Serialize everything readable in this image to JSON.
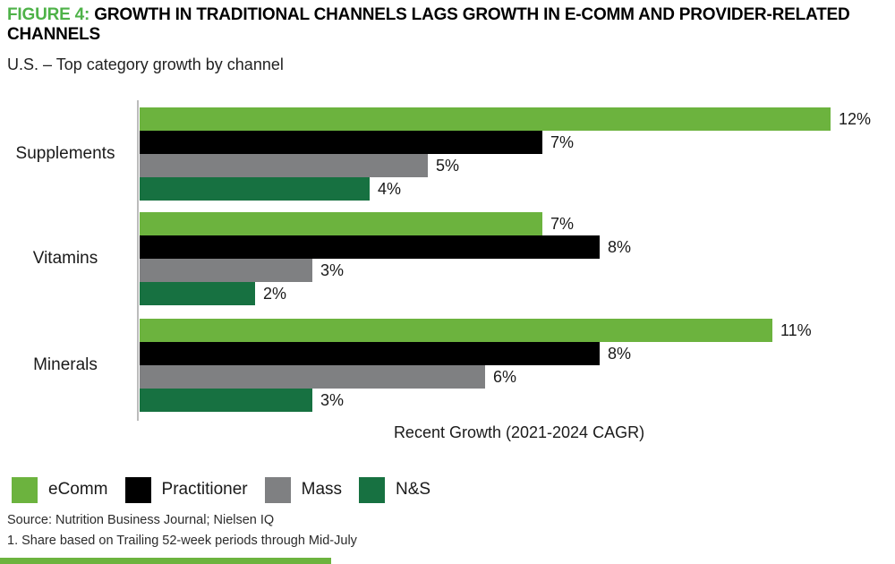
{
  "header": {
    "figure_label": "FIGURE 4:",
    "title": "GROWTH IN TRADITIONAL CHANNELS LAGS GROWTH IN E-COMM AND PROVIDER-RELATED CHANNELS",
    "subtitle": "U.S. – Top category growth by channel"
  },
  "chart_data": {
    "type": "bar",
    "orientation": "horizontal",
    "title": "U.S. – Top category growth by channel",
    "xlabel": "Recent Growth (2021-2024 CAGR)",
    "xlim": [
      0,
      12.5
    ],
    "grid": false,
    "data_labels": true,
    "value_suffix": "%",
    "legend_position": "bottom",
    "categories": [
      "Supplements",
      "Vitamins",
      "Minerals"
    ],
    "series": [
      {
        "name": "eComm",
        "color": "#6CB33E",
        "values": [
          12,
          7,
          11
        ]
      },
      {
        "name": "Practitioner",
        "color": "#000000",
        "values": [
          7,
          8,
          8
        ]
      },
      {
        "name": "Mass",
        "color": "#7F8082",
        "values": [
          5,
          3,
          6
        ]
      },
      {
        "name": "N&S",
        "color": "#177141",
        "values": [
          4,
          2,
          3
        ]
      }
    ]
  },
  "footer": {
    "source": "Source: Nutrition Business Journal; Nielsen IQ",
    "footnote": "1. Share based on Trailing 52-week periods through Mid-July"
  },
  "colors": {
    "figure_label_green": "#4EB248",
    "accent_green": "#6CB33E",
    "axis_line_gray": "#BCBCBC"
  }
}
